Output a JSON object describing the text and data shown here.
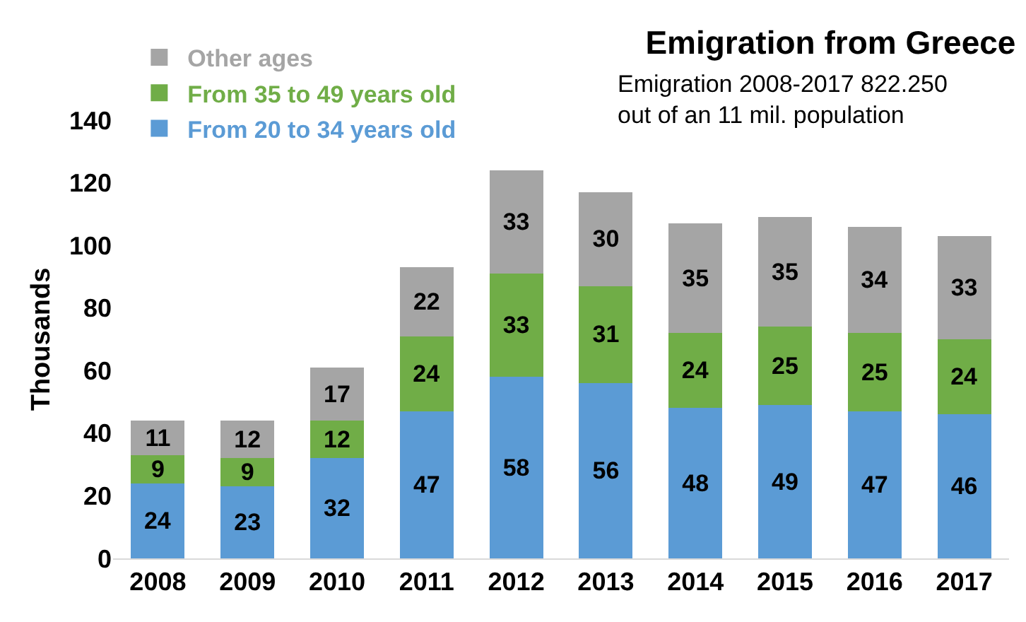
{
  "chart_data": {
    "type": "bar",
    "title": "Emigration from Greece",
    "subtitle": "Emigration 2008-2017 822.250\nout of an 11 mil. population",
    "ylabel": "Thousands",
    "categories": [
      "2008",
      "2009",
      "2010",
      "2011",
      "2012",
      "2013",
      "2014",
      "2015",
      "2016",
      "2017"
    ],
    "series": [
      {
        "name": "From 20 to 34 years old",
        "color": "#5b9bd5",
        "values": [
          24,
          23,
          32,
          47,
          58,
          56,
          48,
          49,
          47,
          46
        ]
      },
      {
        "name": "From 35 to 49 years old",
        "color": "#70ad47",
        "values": [
          9,
          9,
          12,
          24,
          33,
          31,
          24,
          25,
          25,
          24
        ]
      },
      {
        "name": "Other ages",
        "color": "#a5a5a5",
        "values": [
          11,
          12,
          17,
          22,
          33,
          30,
          35,
          35,
          34,
          33
        ]
      }
    ],
    "stacked": true,
    "data_labels": true,
    "ylim": [
      0,
      140
    ],
    "yticks": [
      0,
      20,
      40,
      60,
      80,
      100,
      120,
      140
    ],
    "grid": false,
    "legend": "top left"
  }
}
